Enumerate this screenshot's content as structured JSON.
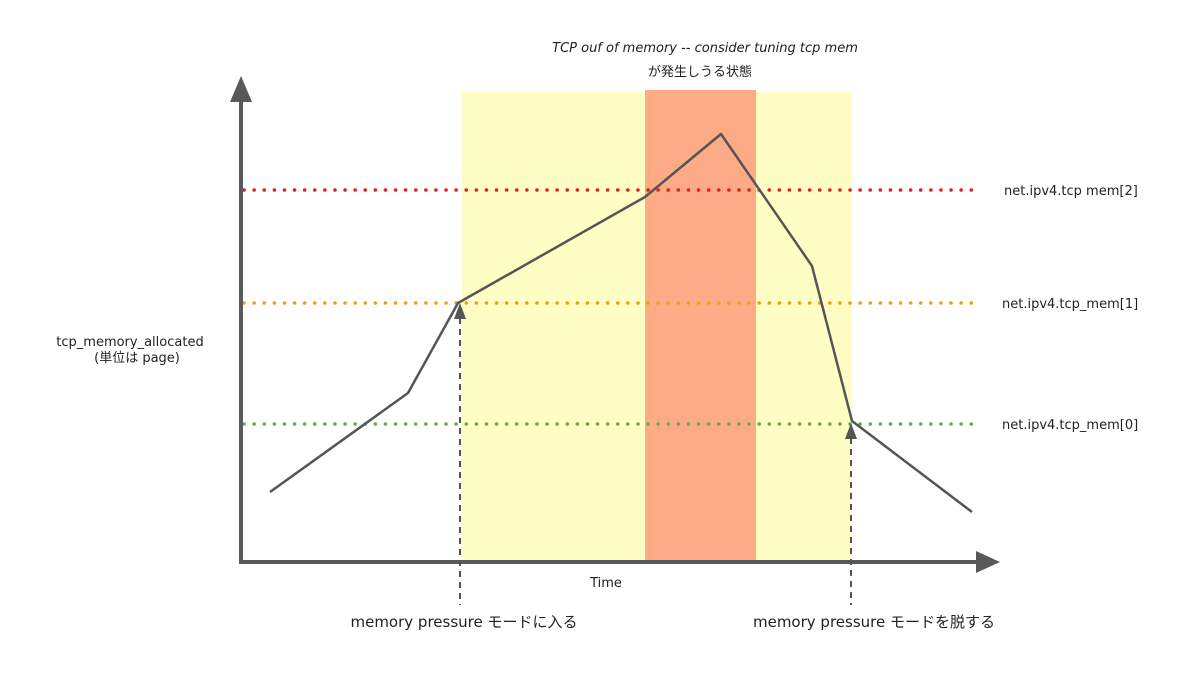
{
  "diagram": {
    "annotation": {
      "line1": "TCP ouf of memory -- consider tuning tcp mem",
      "line2": "が発生しうる状態"
    },
    "y_axis_label": {
      "line1": "tcp_memory_allocated",
      "line2": "(単位は page)"
    },
    "x_axis_label": "Time",
    "thresholds": [
      {
        "label": "net.ipv4.tcp_mem[0]",
        "color": "#6aaa48"
      },
      {
        "label": "net.ipv4.tcp_mem[1]",
        "color": "#f39c12"
      },
      {
        "label": "net.ipv4.tcp mem[2]",
        "color": "#e02020"
      }
    ],
    "events": {
      "enter": "memory pressure モードに入る",
      "exit": "memory pressure モードを脱する"
    },
    "colors": {
      "pressure_zone": "#fdfdc4",
      "oom_zone": "#fdab86",
      "axis": "#595959",
      "curve": "#555555"
    }
  }
}
